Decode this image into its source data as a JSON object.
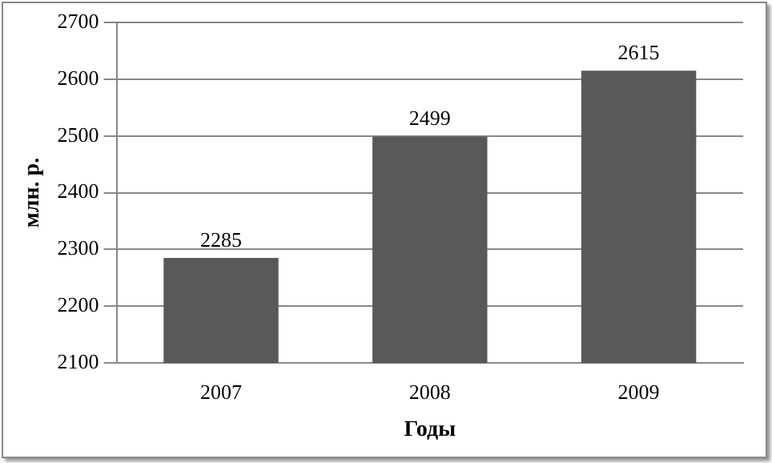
{
  "chart_data": {
    "type": "bar",
    "categories": [
      "2007",
      "2008",
      "2009"
    ],
    "values": [
      2285,
      2499,
      2615
    ],
    "color": "#595959",
    "ylim": [
      2100,
      2700
    ],
    "yticks": [
      2100,
      2200,
      2300,
      2400,
      2500,
      2600,
      2700
    ],
    "grid": "y",
    "data_labels": true,
    "xlabel": "Годы",
    "ylabel": "млн. р."
  }
}
